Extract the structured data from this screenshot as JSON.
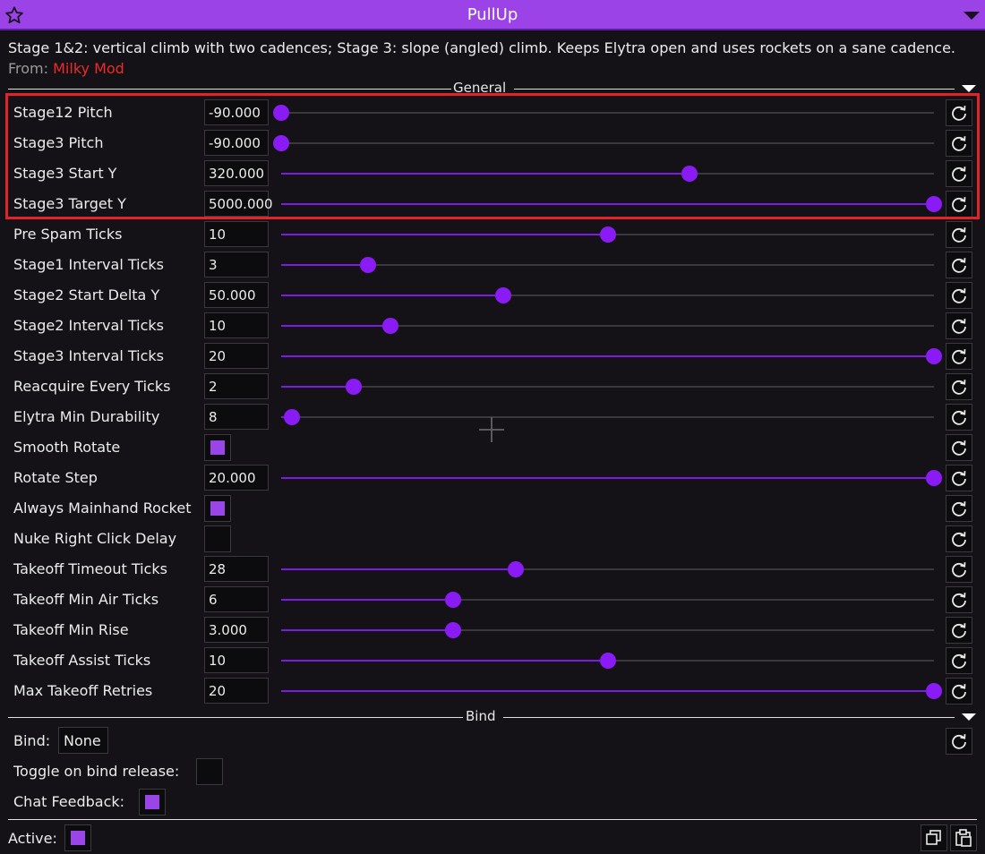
{
  "window": {
    "title": "PullUp"
  },
  "description": "Stage 1&2: vertical climb with two cadences; Stage 3: slope (angled) climb. Keeps Elytra open and uses rockets on a sane cadence.",
  "from": {
    "label": "From:",
    "author": "Milky Mod"
  },
  "sections": {
    "general": "General",
    "bind": "Bind"
  },
  "settings": [
    {
      "label": "Stage12 Pitch",
      "type": "slider",
      "value": "-90.000",
      "fraction": 0.0
    },
    {
      "label": "Stage3 Pitch",
      "type": "slider",
      "value": "-90.000",
      "fraction": 0.0
    },
    {
      "label": "Stage3 Start Y",
      "type": "slider",
      "value": "320.000",
      "fraction": 0.625
    },
    {
      "label": "Stage3 Target Y",
      "type": "slider",
      "value": "5000.000",
      "fraction": 1.0
    },
    {
      "label": "Pre Spam Ticks",
      "type": "slider",
      "value": "10",
      "fraction": 0.5
    },
    {
      "label": "Stage1 Interval Ticks",
      "type": "slider",
      "value": "3",
      "fraction": 0.133
    },
    {
      "label": "Stage2 Start Delta Y",
      "type": "slider",
      "value": "50.000",
      "fraction": 0.34
    },
    {
      "label": "Stage2 Interval Ticks",
      "type": "slider",
      "value": "10",
      "fraction": 0.167
    },
    {
      "label": "Stage3 Interval Ticks",
      "type": "slider",
      "value": "20",
      "fraction": 1.0
    },
    {
      "label": "Reacquire Every Ticks",
      "type": "slider",
      "value": "2",
      "fraction": 0.111
    },
    {
      "label": "Elytra Min Durability",
      "type": "slider",
      "value": "8",
      "fraction": 0.017
    },
    {
      "label": "Smooth Rotate",
      "type": "checkbox",
      "checked": true
    },
    {
      "label": "Rotate Step",
      "type": "slider",
      "value": "20.000",
      "fraction": 1.0
    },
    {
      "label": "Always Mainhand Rocket",
      "type": "checkbox",
      "checked": true
    },
    {
      "label": "Nuke Right Click Delay",
      "type": "checkbox",
      "checked": false
    },
    {
      "label": "Takeoff Timeout Ticks",
      "type": "slider",
      "value": "28",
      "fraction": 0.36
    },
    {
      "label": "Takeoff Min Air Ticks",
      "type": "slider",
      "value": "6",
      "fraction": 0.263
    },
    {
      "label": "Takeoff Min Rise",
      "type": "slider",
      "value": "3.000",
      "fraction": 0.263
    },
    {
      "label": "Takeoff Assist Ticks",
      "type": "slider",
      "value": "10",
      "fraction": 0.5
    },
    {
      "label": "Max Takeoff Retries",
      "type": "slider",
      "value": "20",
      "fraction": 1.0
    }
  ],
  "bind": {
    "bind_label": "Bind:",
    "bind_value": "None",
    "toggle_label": "Toggle on bind release:",
    "toggle_checked": false,
    "chat_label": "Chat Feedback:",
    "chat_checked": true
  },
  "footer": {
    "active_label": "Active:",
    "active_checked": true
  },
  "colors": {
    "accent": "#9b43e6",
    "slider": "#8a1bf5",
    "highlight": "#e3232a",
    "author": "#ee2a2a"
  },
  "icons": [
    "star-icon",
    "chevron-down-icon",
    "reset-icon",
    "copy-icon",
    "paste-icon"
  ]
}
